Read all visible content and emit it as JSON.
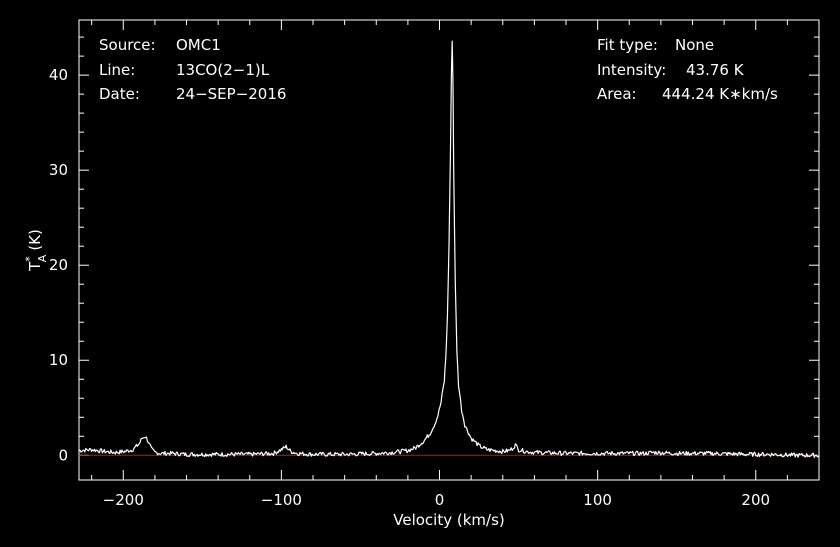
{
  "chart_data": {
    "type": "line",
    "xlabel": "Velocity (km/s)",
    "ylabel": {
      "base": "T",
      "sup": "*",
      "sub": "A",
      "unit": "(K)"
    },
    "xlim": [
      -228,
      240
    ],
    "ylim": [
      -2.6,
      45.8
    ],
    "x_ticks": [
      -200,
      -100,
      0,
      100,
      200
    ],
    "y_ticks": [
      0,
      10,
      20,
      30,
      40
    ],
    "x_tick_labels": [
      "−200",
      "−100",
      "0",
      "100",
      "200"
    ],
    "y_tick_labels": [
      "0",
      "10",
      "20",
      "30",
      "40"
    ],
    "baseline": {
      "value": 0,
      "color": "#d01010"
    },
    "series_color": "#ffffff",
    "series": [
      {
        "x": [
          -228,
          -220,
          -212,
          -205,
          -199,
          -194,
          -190,
          -188,
          -186,
          -184,
          -182,
          -180,
          -176,
          -170,
          -160,
          -140,
          -120,
          -105,
          -100,
          -97,
          -94,
          -90,
          -80,
          -60,
          -40,
          -30,
          -20,
          -15,
          -10,
          -6,
          -3,
          -1,
          1,
          3,
          4,
          5,
          6,
          7,
          7.5,
          8,
          8.5,
          9,
          10,
          11,
          12,
          14,
          16,
          20,
          25,
          30,
          35,
          40,
          44,
          46,
          48,
          50,
          55,
          60,
          80,
          100,
          130,
          135,
          150,
          170,
          195,
          200,
          210,
          225,
          240
        ],
        "values": [
          0.5,
          0.6,
          0.4,
          0.3,
          0.4,
          0.6,
          1.2,
          1.8,
          2.0,
          1.4,
          0.6,
          0.3,
          0.2,
          0.2,
          0.1,
          0.1,
          0.1,
          0.2,
          0.6,
          0.9,
          0.4,
          0.2,
          0.1,
          0.1,
          0.2,
          0.3,
          0.5,
          0.8,
          1.5,
          2.3,
          3.3,
          4.2,
          5.6,
          7.8,
          10.3,
          14.5,
          22.0,
          33.0,
          40.0,
          43.76,
          39.0,
          30.0,
          18.0,
          11.0,
          7.5,
          4.8,
          3.2,
          1.8,
          1.0,
          0.6,
          0.5,
          0.4,
          0.5,
          0.7,
          1.1,
          0.6,
          0.4,
          0.3,
          0.2,
          0.2,
          0.2,
          0.3,
          0.2,
          0.2,
          0.1,
          0.1,
          0.1,
          0.0,
          0.0
        ]
      }
    ]
  },
  "info_left": [
    {
      "key": "Source:",
      "value": "OMC1"
    },
    {
      "key": "Line:",
      "value": "13CO(2−1)L"
    },
    {
      "key": "Date:",
      "value": "24−SEP−2016"
    }
  ],
  "info_right": [
    {
      "key": "Fit type:",
      "value": "None"
    },
    {
      "key": "Intensity:",
      "value": "43.76 K"
    },
    {
      "key": "Area:",
      "value": "444.24 K∗km/s"
    }
  ]
}
